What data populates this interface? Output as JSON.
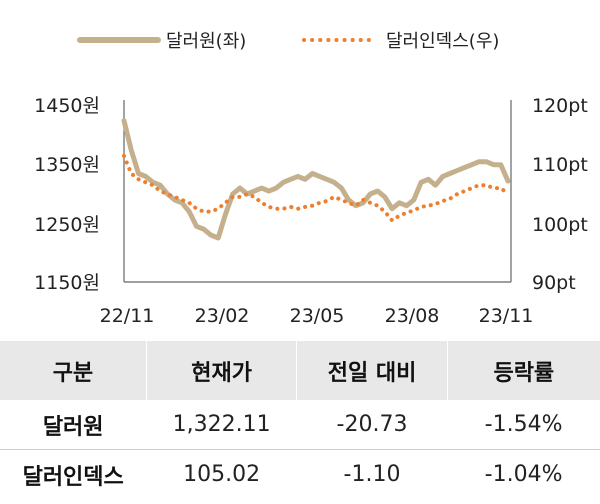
{
  "chart_data": {
    "type": "line",
    "legend": {
      "placement": "top-center"
    },
    "grid": false,
    "x_ticks": [
      "22/11",
      "23/02",
      "23/05",
      "23/08",
      "23/11"
    ],
    "y_left_ticks": [
      "1450원",
      "1350원",
      "1250원",
      "1150원"
    ],
    "y_right_ticks": [
      "120pt",
      "110pt",
      "100pt",
      "90pt"
    ],
    "y_left_range": [
      1150,
      1450
    ],
    "y_right_range": [
      90,
      120
    ],
    "series": [
      {
        "name": "달러원(좌)",
        "axis": "left",
        "style": "solid",
        "color": "#c5b08e",
        "x": [
          "2022-11-01",
          "2022-11-08",
          "2022-11-15",
          "2022-11-22",
          "2022-11-29",
          "2022-12-06",
          "2022-12-13",
          "2022-12-20",
          "2022-12-27",
          "2023-01-03",
          "2023-01-10",
          "2023-01-17",
          "2023-01-24",
          "2023-01-31",
          "2023-02-07",
          "2023-02-14",
          "2023-02-21",
          "2023-02-28",
          "2023-03-07",
          "2023-03-14",
          "2023-03-21",
          "2023-03-28",
          "2023-04-04",
          "2023-04-11",
          "2023-04-18",
          "2023-04-25",
          "2023-05-02",
          "2023-05-09",
          "2023-05-16",
          "2023-05-23",
          "2023-05-30",
          "2023-06-06",
          "2023-06-13",
          "2023-06-20",
          "2023-06-27",
          "2023-07-04",
          "2023-07-11",
          "2023-07-18",
          "2023-07-25",
          "2023-08-01",
          "2023-08-08",
          "2023-08-15",
          "2023-08-22",
          "2023-08-29",
          "2023-09-05",
          "2023-09-12",
          "2023-09-19",
          "2023-09-26",
          "2023-10-03",
          "2023-10-10",
          "2023-10-17",
          "2023-10-24",
          "2023-10-31",
          "2023-11-07"
        ],
        "values": [
          1425,
          1375,
          1335,
          1330,
          1320,
          1315,
          1300,
          1290,
          1285,
          1270,
          1245,
          1240,
          1230,
          1225,
          1265,
          1300,
          1310,
          1300,
          1305,
          1310,
          1305,
          1310,
          1320,
          1325,
          1330,
          1325,
          1335,
          1330,
          1325,
          1320,
          1310,
          1290,
          1280,
          1285,
          1300,
          1305,
          1295,
          1275,
          1285,
          1280,
          1290,
          1320,
          1325,
          1315,
          1330,
          1335,
          1340,
          1345,
          1350,
          1355,
          1355,
          1350,
          1350,
          1322
        ]
      },
      {
        "name": "달러인덱스(우)",
        "axis": "right",
        "style": "dotted",
        "color": "#ee7f2d",
        "x": [
          "2022-11-01",
          "2022-11-08",
          "2022-11-15",
          "2022-11-22",
          "2022-11-29",
          "2022-12-06",
          "2022-12-13",
          "2022-12-20",
          "2022-12-27",
          "2023-01-03",
          "2023-01-10",
          "2023-01-17",
          "2023-01-24",
          "2023-01-31",
          "2023-02-07",
          "2023-02-14",
          "2023-02-21",
          "2023-02-28",
          "2023-03-07",
          "2023-03-14",
          "2023-03-21",
          "2023-03-28",
          "2023-04-04",
          "2023-04-11",
          "2023-04-18",
          "2023-04-25",
          "2023-05-02",
          "2023-05-09",
          "2023-05-16",
          "2023-05-23",
          "2023-05-30",
          "2023-06-06",
          "2023-06-13",
          "2023-06-20",
          "2023-06-27",
          "2023-07-04",
          "2023-07-11",
          "2023-07-18",
          "2023-07-25",
          "2023-08-01",
          "2023-08-08",
          "2023-08-15",
          "2023-08-22",
          "2023-08-29",
          "2023-09-05",
          "2023-09-12",
          "2023-09-19",
          "2023-09-26",
          "2023-10-03",
          "2023-10-10",
          "2023-10-17",
          "2023-10-24",
          "2023-10-31",
          "2023-11-07"
        ],
        "values": [
          111.5,
          108.5,
          107.5,
          107,
          106.5,
          105.5,
          105,
          104.5,
          104,
          103.5,
          102.5,
          102,
          102,
          102.5,
          103.5,
          104.5,
          104.5,
          105,
          104.5,
          103.5,
          102.8,
          102.5,
          102.5,
          102.8,
          102.5,
          102.8,
          103,
          103.5,
          103.8,
          104.5,
          104,
          103.5,
          103,
          104,
          103.5,
          103,
          102,
          100.5,
          101.3,
          101.8,
          102.2,
          102.8,
          103,
          103.3,
          103.8,
          104.2,
          105,
          105.5,
          106,
          106.5,
          106.5,
          106,
          106,
          105.02
        ]
      }
    ]
  },
  "table": {
    "headers": [
      "구분",
      "현재가",
      "전일 대비",
      "등락률"
    ],
    "rows": [
      {
        "name": "달러원",
        "price": "1,322.11",
        "change": "-20.73",
        "rate": "-1.54%"
      },
      {
        "name": "달러인덱스",
        "price": "105.02",
        "change": "-1.10",
        "rate": "-1.04%"
      }
    ]
  }
}
